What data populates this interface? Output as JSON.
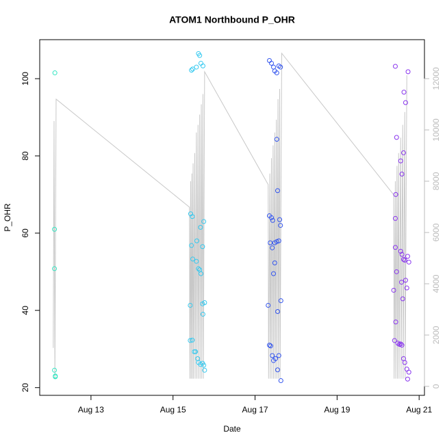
{
  "chart_data": {
    "type": "scatter",
    "title": "ATOM1 Northbound P_OHR",
    "x_label": "Date",
    "y_label": "P_OHR",
    "xlim": [
      11.75,
      21.13
    ],
    "ylim": [
      18,
      110.1
    ],
    "y2lim": [
      -350,
      13520
    ],
    "xticks": [
      {
        "value": 13,
        "label": "Aug 13"
      },
      {
        "value": 15,
        "label": "Aug 15"
      },
      {
        "value": 17,
        "label": "Aug 17"
      },
      {
        "value": 19,
        "label": "Aug 19"
      },
      {
        "value": 21,
        "label": "Aug 21"
      }
    ],
    "yticks": [
      20,
      40,
      60,
      80,
      100
    ],
    "y2ticks": [
      0,
      2000,
      4000,
      6000,
      8000,
      10000,
      12000
    ],
    "series": [
      {
        "color": "#33e6c2",
        "x": [
          12.12,
          12.11,
          12.11,
          12.11,
          12.13,
          12.13
        ],
        "values": [
          101.5,
          61,
          50.8,
          24.5,
          23,
          22.8
        ]
      },
      {
        "color": "#33c9f0",
        "x": [
          15.45,
          15.48,
          15.57,
          15.62,
          15.65,
          15.68,
          15.73,
          15.43,
          15.47,
          15.67,
          15.75,
          15.45,
          15.58,
          15.72,
          15.48,
          15.57,
          15.62,
          15.65,
          15.68,
          15.42,
          15.72,
          15.77,
          15.73,
          15.42,
          15.47,
          15.52,
          15.55,
          15.6,
          15.62,
          15.67,
          15.72,
          15.75,
          15.77
        ],
        "values": [
          102.2,
          102.5,
          103,
          106.5,
          106,
          104,
          103.3,
          65,
          64.3,
          61.5,
          63,
          56.8,
          58,
          56.5,
          53.3,
          52.7,
          50.8,
          50.5,
          49.5,
          41.3,
          41.7,
          42,
          39,
          32.2,
          32.3,
          29.3,
          29.3,
          27.5,
          26.5,
          26,
          26.3,
          25.8,
          24.5
        ]
      },
      {
        "color": "#3355ee",
        "x": [
          17.35,
          17.4,
          17.45,
          17.48,
          17.53,
          17.58,
          17.62,
          17.53,
          17.55,
          17.35,
          17.4,
          17.43,
          17.6,
          17.62,
          17.37,
          17.42,
          17.48,
          17.53,
          17.58,
          17.48,
          17.45,
          17.32,
          17.55,
          17.63,
          17.35,
          17.38,
          17.42,
          17.45,
          17.5,
          17.58,
          17.55,
          17.63
        ],
        "values": [
          104.7,
          104,
          103,
          102,
          101.5,
          103.3,
          103,
          84.3,
          71,
          64.5,
          64,
          63.3,
          63.5,
          62,
          57.5,
          56.2,
          57.5,
          57.8,
          58,
          52.3,
          49.5,
          41.3,
          39.7,
          42.5,
          31,
          30.8,
          28.3,
          27,
          27.5,
          28.3,
          24.6,
          21.8
        ]
      },
      {
        "color": "#8833ee",
        "x": [
          20.42,
          20.73,
          20.45,
          20.63,
          20.67,
          20.43,
          20.55,
          20.58,
          20.62,
          20.42,
          20.42,
          20.45,
          20.55,
          20.58,
          20.62,
          20.65,
          20.72,
          20.75,
          20.38,
          20.57,
          20.67,
          20.7,
          20.6,
          20.43,
          20.4,
          20.48,
          20.52,
          20.55,
          20.58,
          20.62,
          20.65,
          20.7,
          20.75,
          20.72
        ],
        "values": [
          103.2,
          101.8,
          84.8,
          96.5,
          93.8,
          70,
          78.7,
          75.3,
          80.8,
          63.8,
          56.3,
          50,
          55.3,
          54.5,
          53.2,
          53,
          54,
          52.5,
          45.2,
          47.3,
          47.8,
          45.8,
          43,
          37,
          32.2,
          31.5,
          31.2,
          31.3,
          31,
          27.5,
          26.5,
          24.8,
          24,
          22.2
        ]
      }
    ],
    "line": {
      "color": "#c8c8c8",
      "axis": "y2",
      "x": [
        12.08,
        12.1,
        12.12,
        12.15,
        15.4,
        15.41,
        15.43,
        15.44,
        15.46,
        15.47,
        15.49,
        15.5,
        15.53,
        15.54,
        15.57,
        15.58,
        15.61,
        15.62,
        15.65,
        15.66,
        15.69,
        15.7,
        15.73,
        15.74,
        15.77,
        17.32,
        17.33,
        17.36,
        17.37,
        17.4,
        17.41,
        17.44,
        17.45,
        17.48,
        17.49,
        17.52,
        17.53,
        17.56,
        17.57,
        17.6,
        17.61,
        17.65,
        20.38,
        20.39,
        20.42,
        20.43,
        20.46,
        20.47,
        20.5,
        20.51,
        20.55,
        20.56,
        20.6,
        20.61,
        20.65,
        20.66,
        20.7
      ],
      "values": [
        1500,
        10350,
        300,
        11200,
        6990,
        300,
        8000,
        300,
        8300,
        300,
        8700,
        300,
        9100,
        300,
        9900,
        300,
        10200,
        300,
        10600,
        300,
        11000,
        300,
        11400,
        300,
        12270,
        7870,
        300,
        8300,
        300,
        8900,
        300,
        9400,
        300,
        9900,
        300,
        10400,
        300,
        11200,
        300,
        11600,
        300,
        12990,
        7470,
        300,
        8000,
        300,
        8600,
        300,
        9100,
        300,
        9700,
        300,
        10200,
        300,
        10700,
        300,
        12130
      ]
    }
  }
}
